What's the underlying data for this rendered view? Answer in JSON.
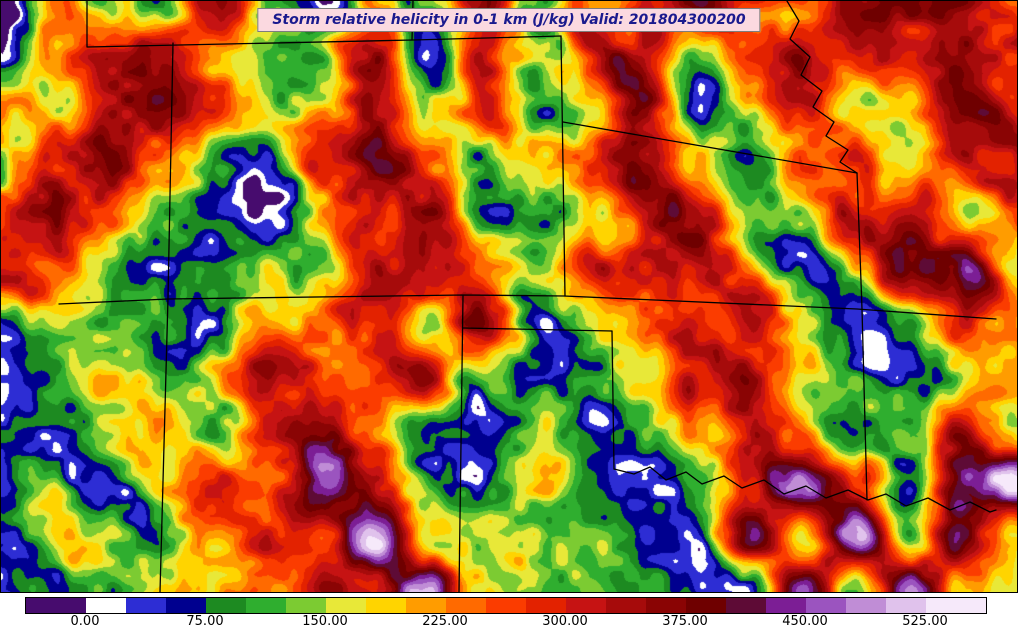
{
  "title": {
    "text": "Storm relative helicity in 0-1 km (J/kg) Valid: 201804300200",
    "text_color": "#1a1a8e",
    "background": "#fbd9e0",
    "border_color": "#7d7d7d"
  },
  "chart_data": {
    "type": "heatmap",
    "title": "Storm relative helicity in 0-1 km (J/kg) Valid: 201804300200",
    "variable": "Storm relative helicity in 0-1 km",
    "units": "J/kg",
    "valid_time": "201804300200",
    "legend_position": "bottom",
    "colorbar": {
      "orientation": "horizontal",
      "vmin": -37.5,
      "vmax": 562.5,
      "ticks": [
        0,
        75,
        150,
        225,
        300,
        375,
        450,
        525
      ],
      "tick_labels": [
        "0.00",
        "75.00",
        "150.00",
        "225.00",
        "300.00",
        "375.00",
        "450.00",
        "525.00"
      ],
      "bands": [
        {
          "min": -37.5,
          "max": 0,
          "color": "#470c6e"
        },
        {
          "min": 0,
          "max": 25,
          "color": "#ffffff"
        },
        {
          "min": 25,
          "max": 50,
          "color": "#2d2dd4"
        },
        {
          "min": 50,
          "max": 75,
          "color": "#00008f"
        },
        {
          "min": 75,
          "max": 100,
          "color": "#1d8a21"
        },
        {
          "min": 100,
          "max": 125,
          "color": "#2fae2f"
        },
        {
          "min": 125,
          "max": 150,
          "color": "#7ccb32"
        },
        {
          "min": 150,
          "max": 175,
          "color": "#e8e838"
        },
        {
          "min": 175,
          "max": 200,
          "color": "#ffd400"
        },
        {
          "min": 200,
          "max": 225,
          "color": "#ff9c00"
        },
        {
          "min": 225,
          "max": 250,
          "color": "#ff6a00"
        },
        {
          "min": 250,
          "max": 275,
          "color": "#fb3c00"
        },
        {
          "min": 275,
          "max": 300,
          "color": "#e32200"
        },
        {
          "min": 300,
          "max": 325,
          "color": "#c61313"
        },
        {
          "min": 325,
          "max": 350,
          "color": "#a60b0b"
        },
        {
          "min": 350,
          "max": 375,
          "color": "#8a0404"
        },
        {
          "min": 375,
          "max": 400,
          "color": "#6f0000"
        },
        {
          "min": 400,
          "max": 425,
          "color": "#5e0b36"
        },
        {
          "min": 425,
          "max": 450,
          "color": "#7c1e95"
        },
        {
          "min": 450,
          "max": 475,
          "color": "#9b54bf"
        },
        {
          "min": 475,
          "max": 500,
          "color": "#c08dd6"
        },
        {
          "min": 500,
          "max": 525,
          "color": "#e0c2ec"
        },
        {
          "min": 525,
          "max": 562.5,
          "color": "#f6e9fa"
        }
      ]
    },
    "grid": {
      "description": "Approximate storm relative helicity values (J/kg) sampled on a coarse 20x12 grid over the plotted domain, row 0 = north/top",
      "rows": 12,
      "cols": 20,
      "values": [
        [
          20,
          300,
          150,
          90,
          320,
          140,
          60,
          200,
          100,
          330,
          130,
          250,
          340,
          380,
          300,
          260,
          320,
          360,
          390,
          340
        ],
        [
          60,
          250,
          300,
          330,
          160,
          100,
          140,
          320,
          20,
          300,
          110,
          230,
          370,
          150,
          240,
          330,
          300,
          250,
          360,
          390
        ],
        [
          220,
          130,
          330,
          350,
          230,
          60,
          170,
          300,
          140,
          260,
          40,
          180,
          330,
          120,
          220,
          300,
          180,
          140,
          330,
          360
        ],
        [
          150,
          320,
          360,
          260,
          150,
          60,
          220,
          340,
          260,
          130,
          180,
          240,
          300,
          230,
          130,
          260,
          330,
          120,
          260,
          340
        ],
        [
          300,
          350,
          280,
          130,
          80,
          40,
          150,
          300,
          340,
          110,
          90,
          200,
          280,
          320,
          150,
          120,
          280,
          330,
          160,
          300
        ],
        [
          330,
          280,
          150,
          90,
          120,
          170,
          90,
          250,
          330,
          220,
          130,
          260,
          320,
          280,
          130,
          90,
          160,
          300,
          330,
          200
        ],
        [
          130,
          180,
          100,
          140,
          90,
          240,
          310,
          290,
          150,
          330,
          60,
          130,
          230,
          300,
          320,
          130,
          60,
          130,
          250,
          160
        ],
        [
          90,
          140,
          170,
          110,
          250,
          320,
          270,
          330,
          360,
          150,
          40,
          90,
          160,
          280,
          330,
          150,
          40,
          90,
          160,
          130
        ],
        [
          120,
          90,
          130,
          190,
          140,
          290,
          380,
          300,
          160,
          60,
          130,
          30,
          90,
          150,
          300,
          280,
          90,
          130,
          330,
          90
        ],
        [
          100,
          140,
          80,
          120,
          260,
          230,
          440,
          330,
          130,
          90,
          160,
          60,
          30,
          100,
          250,
          460,
          300,
          60,
          430,
          470
        ],
        [
          80,
          110,
          140,
          90,
          160,
          300,
          250,
          480,
          160,
          110,
          90,
          130,
          50,
          80,
          440,
          160,
          480,
          90,
          330,
          150
        ],
        [
          90,
          130,
          100,
          150,
          110,
          260,
          320,
          260,
          500,
          140,
          90,
          120,
          60,
          30,
          90,
          470,
          130,
          450,
          120,
          100
        ]
      ]
    }
  }
}
